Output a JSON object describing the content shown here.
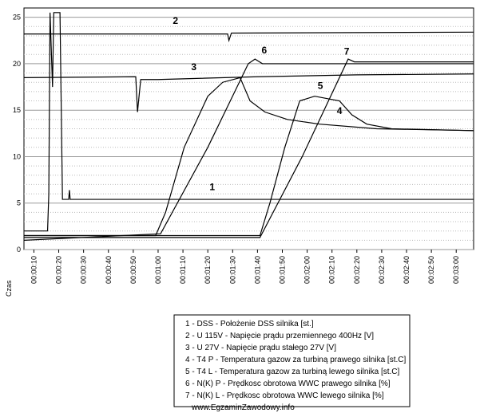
{
  "chart_data": {
    "type": "line",
    "x_label": "Czas",
    "xlim": [
      6,
      187
    ],
    "ylim": [
      0,
      26
    ],
    "yticks": [
      0,
      5,
      10,
      15,
      20,
      25
    ],
    "minor_yticks": [
      1,
      2,
      3,
      4,
      6,
      7,
      8,
      9,
      11,
      12,
      13,
      14,
      16,
      17,
      18,
      19,
      21,
      22,
      23,
      24
    ],
    "grid": true,
    "xticks": [
      {
        "value": 10,
        "label": "00:00:10"
      },
      {
        "value": 20,
        "label": "00:00:20"
      },
      {
        "value": 30,
        "label": "00:00:30"
      },
      {
        "value": 40,
        "label": "00:00:40"
      },
      {
        "value": 50,
        "label": "00:00:50"
      },
      {
        "value": 60,
        "label": "00:01:00"
      },
      {
        "value": 70,
        "label": "00:01:10"
      },
      {
        "value": 80,
        "label": "00:01:20"
      },
      {
        "value": 90,
        "label": "00:01:30"
      },
      {
        "value": 100,
        "label": "00:01:40"
      },
      {
        "value": 110,
        "label": "00:01:50"
      },
      {
        "value": 120,
        "label": "00:02:00"
      },
      {
        "value": 130,
        "label": "00:02:10"
      },
      {
        "value": 140,
        "label": "00:02:20"
      },
      {
        "value": 150,
        "label": "00:02:30"
      },
      {
        "value": 160,
        "label": "00:02:40"
      },
      {
        "value": 170,
        "label": "00:02:50"
      },
      {
        "value": 180,
        "label": "00:03:00"
      }
    ],
    "series": [
      {
        "name": "1 - DSS - Położenie DSS silnika [st.]",
        "color": "#000000",
        "x": [
          6,
          15.5,
          16,
          16.5,
          17.5,
          18,
          20.5,
          21.5,
          24,
          24.3,
          24.6,
          187
        ],
        "values": [
          2,
          2,
          6,
          25.5,
          17.5,
          25.5,
          25.5,
          5.4,
          5.4,
          6.4,
          5.4,
          5.4
        ]
      },
      {
        "name": "2 - U  115V - Napięcie prądu przemiennego 400Hz [V]",
        "color": "#000000",
        "x": [
          6,
          88,
          88.5,
          89.5,
          187
        ],
        "values": [
          23.2,
          23.2,
          22.5,
          23.3,
          23.4
        ]
      },
      {
        "name": "3 - U  27V - Napięcie prądu stałego 27V [V]",
        "color": "#000000",
        "x": [
          6,
          51,
          51.7,
          53,
          60,
          100,
          140,
          187
        ],
        "values": [
          18.5,
          18.6,
          14.8,
          18.3,
          18.3,
          18.6,
          18.8,
          18.9
        ]
      },
      {
        "name": "4 - T4  P - Temperatura gazow za turbiną prawego silnika [st.C]",
        "color": "#000000",
        "x": [
          6,
          59,
          63,
          70.5,
          80,
          86,
          93,
          97,
          103,
          112,
          125,
          148,
          187
        ],
        "values": [
          1.5,
          1.5,
          4,
          11,
          16.5,
          18,
          18.5,
          16,
          14.8,
          14,
          13.5,
          13,
          12.8
        ]
      },
      {
        "name": "5 - T4  L - Temperatura gazow za turbiną lewego silnika [st.C]",
        "color": "#000000",
        "x": [
          6,
          101,
          105,
          111,
          117,
          123,
          133,
          138,
          144,
          154,
          187
        ],
        "values": [
          1.5,
          1.5,
          5,
          11,
          16,
          16.5,
          16,
          14.5,
          13.5,
          13,
          12.8
        ]
      },
      {
        "name": "6 - N(K)  P - Prędkosc obrotowa WWC prawego silnika [%]",
        "color": "#000000",
        "x": [
          6,
          61,
          80,
          96.3,
          99,
          102,
          187
        ],
        "values": [
          1,
          1.7,
          11,
          20,
          20.5,
          20,
          20
        ]
      },
      {
        "name": "7 - N(K)  L - Prędkosc obrotowa WWC lewego silnika [%]",
        "color": "#000000",
        "x": [
          6,
          101,
          118,
          136.5,
          139,
          187
        ],
        "values": [
          1.3,
          1.3,
          10,
          20.5,
          20.2,
          20.2
        ]
      }
    ],
    "annotations": [
      {
        "text": "1",
        "x": 81.8,
        "y": 6.4
      },
      {
        "text": "2",
        "x": 67,
        "y": 24.3
      },
      {
        "text": "3",
        "x": 74.4,
        "y": 19.3
      },
      {
        "text": "4",
        "x": 133,
        "y": 14.6
      },
      {
        "text": "5",
        "x": 125.3,
        "y": 17.3
      },
      {
        "text": "6",
        "x": 102.7,
        "y": 21.1
      },
      {
        "text": "7",
        "x": 135.9,
        "y": 21.0
      }
    ],
    "footer": "www.EgzaminZawodowy.info"
  }
}
